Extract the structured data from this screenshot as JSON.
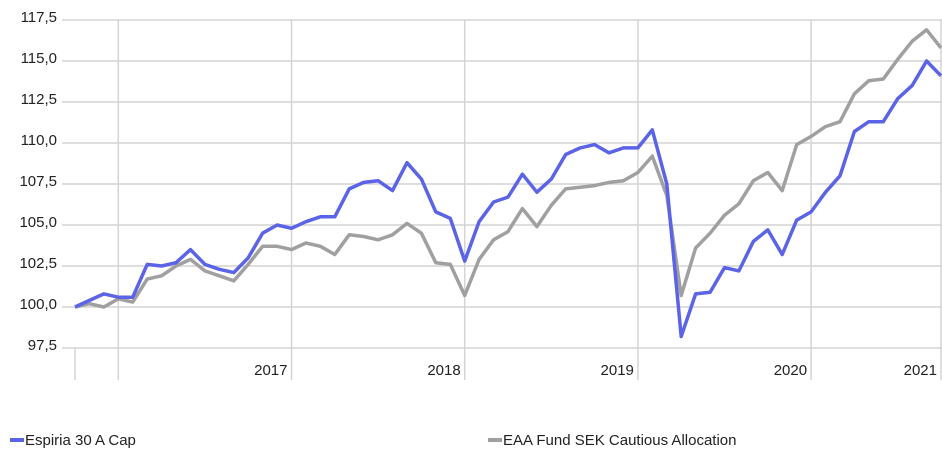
{
  "chart_data": {
    "type": "line",
    "categories": [
      null,
      null,
      null,
      null,
      null,
      null,
      null,
      null,
      null,
      null,
      null,
      null,
      null,
      null,
      null,
      "2017",
      null,
      null,
      null,
      null,
      null,
      null,
      null,
      null,
      null,
      null,
      null,
      "2018",
      null,
      null,
      null,
      null,
      null,
      null,
      null,
      null,
      null,
      null,
      null,
      "2019",
      null,
      null,
      null,
      null,
      null,
      null,
      null,
      null,
      null,
      null,
      null,
      "2020",
      null,
      null,
      null,
      null,
      null,
      null,
      null,
      null,
      "2021"
    ],
    "series": [
      {
        "name": "Espiria 30 A Cap",
        "color": "#5b63e6",
        "values": [
          100.0,
          100.4,
          100.8,
          100.6,
          100.6,
          102.6,
          102.5,
          102.7,
          103.5,
          102.6,
          102.3,
          102.1,
          103.0,
          104.5,
          105.0,
          104.8,
          105.2,
          105.5,
          105.5,
          107.2,
          107.6,
          107.7,
          107.1,
          108.8,
          107.8,
          105.8,
          105.4,
          102.8,
          105.2,
          106.4,
          106.7,
          108.1,
          107.0,
          107.8,
          109.3,
          109.7,
          109.9,
          109.4,
          109.7,
          109.7,
          110.8,
          107.5,
          98.2,
          100.8,
          100.9,
          102.4,
          102.2,
          104.0,
          104.7,
          103.2,
          105.3,
          105.8,
          107.0,
          108.0,
          110.7,
          111.3,
          111.3,
          112.7,
          113.5,
          115.0,
          114.1
        ]
      },
      {
        "name": "EAA Fund SEK Cautious Allocation",
        "color": "#a0a0a0",
        "values": [
          100.0,
          100.2,
          100.0,
          100.5,
          100.3,
          101.7,
          101.9,
          102.5,
          102.9,
          102.2,
          101.9,
          101.6,
          102.6,
          103.7,
          103.7,
          103.5,
          103.9,
          103.7,
          103.2,
          104.4,
          104.3,
          104.1,
          104.4,
          105.1,
          104.5,
          102.7,
          102.6,
          100.7,
          102.9,
          104.1,
          104.6,
          106.0,
          104.9,
          106.2,
          107.2,
          107.3,
          107.4,
          107.6,
          107.7,
          108.2,
          109.2,
          106.8,
          100.7,
          103.6,
          104.5,
          105.6,
          106.3,
          107.7,
          108.2,
          107.1,
          109.9,
          110.4,
          111.0,
          111.3,
          113.0,
          113.8,
          113.9,
          115.1,
          116.2,
          116.9,
          115.8
        ]
      }
    ],
    "ylim": [
      97.5,
      117.5
    ],
    "yticks": [
      {
        "value": 97.5,
        "label": "97,5"
      },
      {
        "value": 100,
        "label": "100,0"
      },
      {
        "value": 102.5,
        "label": "102,5"
      },
      {
        "value": 105,
        "label": "105,0"
      },
      {
        "value": 107.5,
        "label": "107,5"
      },
      {
        "value": 110,
        "label": "110,0"
      },
      {
        "value": 112.5,
        "label": "112,5"
      },
      {
        "value": 115,
        "label": "115,0"
      },
      {
        "value": 117.5,
        "label": "117,5"
      }
    ],
    "grid": true
  }
}
